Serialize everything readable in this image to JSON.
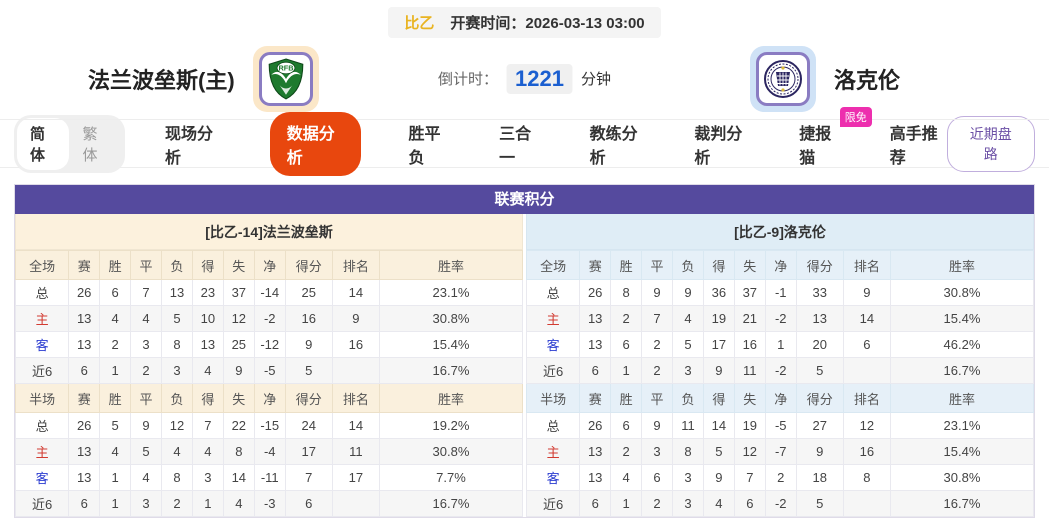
{
  "match_header": {
    "league": "比乙",
    "kickoff_label": "开赛时间：",
    "kickoff_time": "2026-03-13 03:00",
    "home_team": "法兰波垒斯(主)",
    "home_logo_text": "RFB",
    "away_team": "洛克伦",
    "countdown_label": "倒计时：",
    "countdown_minutes": "1221",
    "countdown_unit": "分钟"
  },
  "nav": {
    "lang_simplified": "简体",
    "lang_traditional": "繁体",
    "tabs": [
      "现场分析",
      "数据分析",
      "胜平负",
      "三合一",
      "教练分析",
      "裁判分析",
      "捷报猫",
      "高手推荐"
    ],
    "active_tab": "数据分析",
    "jiebao_badge": "限免",
    "recent_trends_button": "近期盘路"
  },
  "standings": {
    "title": "联赛积分",
    "home": {
      "title": "[比乙-14]法兰波垒斯",
      "full_header": [
        "全场",
        "赛",
        "胜",
        "平",
        "负",
        "得",
        "失",
        "净",
        "得分",
        "排名",
        "胜率"
      ],
      "full_rows": [
        [
          "总",
          "26",
          "6",
          "7",
          "13",
          "23",
          "37",
          "-14",
          "25",
          "14",
          "23.1%"
        ],
        [
          "主",
          "13",
          "4",
          "4",
          "5",
          "10",
          "12",
          "-2",
          "16",
          "9",
          "30.8%"
        ],
        [
          "客",
          "13",
          "2",
          "3",
          "8",
          "13",
          "25",
          "-12",
          "9",
          "16",
          "15.4%"
        ],
        [
          "近6",
          "6",
          "1",
          "2",
          "3",
          "4",
          "9",
          "-5",
          "5",
          "",
          "16.7%"
        ]
      ],
      "half_header": [
        "半场",
        "赛",
        "胜",
        "平",
        "负",
        "得",
        "失",
        "净",
        "得分",
        "排名",
        "胜率"
      ],
      "half_rows": [
        [
          "总",
          "26",
          "5",
          "9",
          "12",
          "7",
          "22",
          "-15",
          "24",
          "14",
          "19.2%"
        ],
        [
          "主",
          "13",
          "4",
          "5",
          "4",
          "4",
          "8",
          "-4",
          "17",
          "11",
          "30.8%"
        ],
        [
          "客",
          "13",
          "1",
          "4",
          "8",
          "3",
          "14",
          "-11",
          "7",
          "17",
          "7.7%"
        ],
        [
          "近6",
          "6",
          "1",
          "3",
          "2",
          "1",
          "4",
          "-3",
          "6",
          "",
          "16.7%"
        ]
      ]
    },
    "away": {
      "title": "[比乙-9]洛克伦",
      "full_header": [
        "全场",
        "赛",
        "胜",
        "平",
        "负",
        "得",
        "失",
        "净",
        "得分",
        "排名",
        "胜率"
      ],
      "full_rows": [
        [
          "总",
          "26",
          "8",
          "9",
          "9",
          "36",
          "37",
          "-1",
          "33",
          "9",
          "30.8%"
        ],
        [
          "主",
          "13",
          "2",
          "7",
          "4",
          "19",
          "21",
          "-2",
          "13",
          "14",
          "15.4%"
        ],
        [
          "客",
          "13",
          "6",
          "2",
          "5",
          "17",
          "16",
          "1",
          "20",
          "6",
          "46.2%"
        ],
        [
          "近6",
          "6",
          "1",
          "2",
          "3",
          "9",
          "11",
          "-2",
          "5",
          "",
          "16.7%"
        ]
      ],
      "half_header": [
        "半场",
        "赛",
        "胜",
        "平",
        "负",
        "得",
        "失",
        "净",
        "得分",
        "排名",
        "胜率"
      ],
      "half_rows": [
        [
          "总",
          "26",
          "6",
          "9",
          "11",
          "14",
          "19",
          "-5",
          "27",
          "12",
          "23.1%"
        ],
        [
          "主",
          "13",
          "2",
          "3",
          "8",
          "5",
          "12",
          "-7",
          "9",
          "16",
          "15.4%"
        ],
        [
          "客",
          "13",
          "4",
          "6",
          "3",
          "9",
          "7",
          "2",
          "18",
          "8",
          "30.8%"
        ],
        [
          "近6",
          "6",
          "1",
          "2",
          "3",
          "4",
          "6",
          "-2",
          "5",
          "",
          "16.7%"
        ]
      ]
    }
  },
  "colors": {
    "table_header_purple": "#554a9e",
    "active_tab_orange": "#e8470e",
    "badge_pink": "#ed2fae",
    "home_theme_cream": "#fcf1dd",
    "away_theme_blue": "#dfedf6",
    "countdown_blue": "#1b5fd0",
    "league_badge_gold": "#e9b422",
    "home_row_label_red": "#d23b31",
    "away_row_label_blue": "#2a3bd0",
    "recent_btn_purple": "#6b4fa5"
  }
}
